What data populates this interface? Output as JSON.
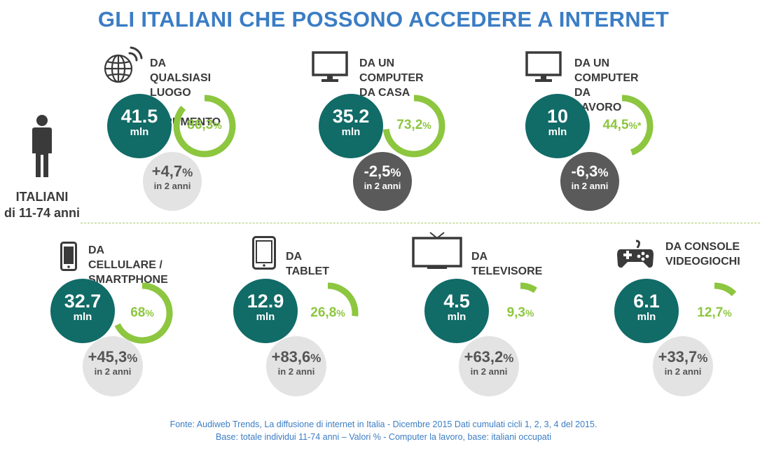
{
  "title": "GLI ITALIANI CHE POSSONO ACCEDERE A INTERNET",
  "person": {
    "line1": "ITALIANI",
    "line2": "di 11-74 anni",
    "icon": "person-icon"
  },
  "colors": {
    "title": "#3b7dc4",
    "teal": "#116b67",
    "green": "#8dc63f",
    "grey_light": "#e3e3e3",
    "grey_dark": "#5a5a5a"
  },
  "items": [
    {
      "label1": "DA QUALSIASI LUOGO",
      "label2": "E STRUMENTO",
      "icon": "globe-wifi-icon",
      "value": "41.5",
      "unit": "mln",
      "pct": "86,3",
      "pct_frac": 0.863,
      "pct_suffix": "%",
      "change": "+4,7",
      "change_suffix": "%",
      "change_sub": "in 2 anni",
      "trend": "up"
    },
    {
      "label1": "DA UN COMPUTER",
      "label2": "DA CASA",
      "icon": "monitor-icon",
      "value": "35.2",
      "unit": "mln",
      "pct": "73,2",
      "pct_frac": 0.732,
      "pct_suffix": "%",
      "change": "-2,5",
      "change_suffix": "%",
      "change_sub": "in 2 anni",
      "trend": "down"
    },
    {
      "label1": "DA UN COMPUTER",
      "label2": "DA LAVORO",
      "icon": "monitor-icon",
      "value": "10",
      "unit": "mln",
      "pct": "44,5",
      "pct_frac": 0.445,
      "pct_suffix": "%*",
      "change": "-6,3",
      "change_suffix": "%",
      "change_sub": "in 2 anni",
      "trend": "down"
    },
    {
      "label1": "DA CELLULARE /",
      "label2": "SMARTPHONE",
      "icon": "smartphone-icon",
      "value": "32.7",
      "unit": "mln",
      "pct": "68",
      "pct_frac": 0.68,
      "pct_suffix": "%",
      "change": "+45,3",
      "change_suffix": "%",
      "change_sub": "in 2 anni",
      "trend": "up"
    },
    {
      "label1": "DA TABLET",
      "label2": "",
      "icon": "tablet-icon",
      "value": "12.9",
      "unit": "mln",
      "pct": "26,8",
      "pct_frac": 0.268,
      "pct_suffix": "%",
      "change": "+83,6",
      "change_suffix": "%",
      "change_sub": "in 2 anni",
      "trend": "up"
    },
    {
      "label1": "DA TELEVISORE",
      "label2": "",
      "icon": "television-icon",
      "value": "4.5",
      "unit": "mln",
      "pct": "9,3",
      "pct_frac": 0.093,
      "pct_suffix": "%",
      "change": "+63,2",
      "change_suffix": "%",
      "change_sub": "in 2 anni",
      "trend": "up"
    },
    {
      "label1": "DA CONSOLE",
      "label2": "VIDEOGIOCHI",
      "icon": "gamepad-icon",
      "value": "6.1",
      "unit": "mln",
      "pct": "12,7",
      "pct_frac": 0.127,
      "pct_suffix": "%",
      "change": "+33,7",
      "change_suffix": "%",
      "change_sub": "in 2 anni",
      "trend": "up"
    }
  ],
  "footer": {
    "line1": "Fonte: Audiweb Trends, La diffusione di internet in Italia - Dicembre 2015 Dati cumulati cicli 1, 2, 3, 4 del 2015.",
    "line2": "Base: totale individui 11-74 anni – Valori % - Computer la lavoro, base: italiani occupati"
  }
}
